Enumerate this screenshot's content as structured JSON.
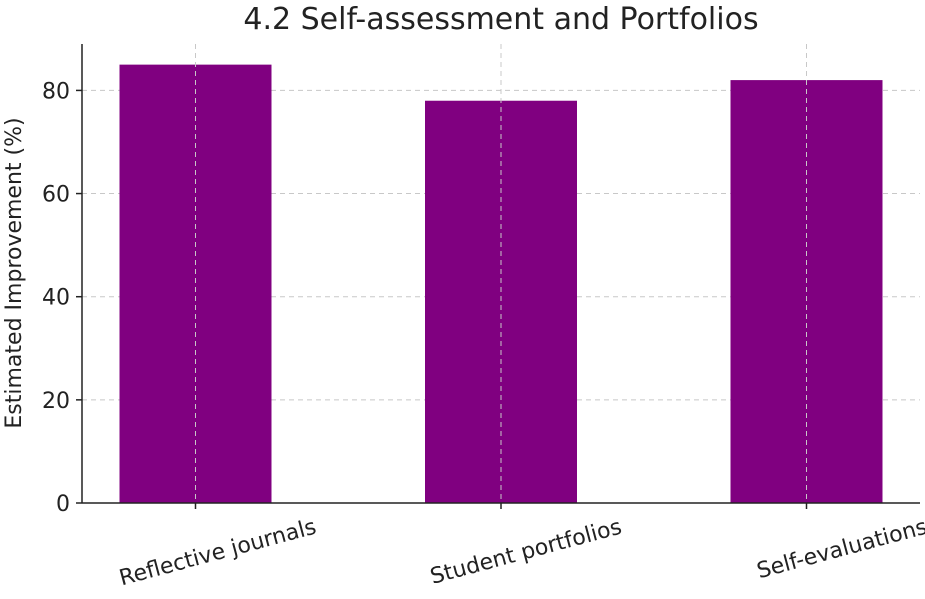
{
  "chart_data": {
    "type": "bar",
    "title": "4.2 Self-assessment and Portfolios",
    "xlabel": "",
    "ylabel": "Estimated Improvement (%)",
    "categories": [
      "Reflective journals",
      "Student portfolios",
      "Self-evaluations"
    ],
    "values": [
      85,
      78,
      82
    ],
    "ylim": [
      0,
      89
    ],
    "yticks": [
      0,
      20,
      40,
      60,
      80
    ],
    "grid": true,
    "bar_color": "#800080"
  }
}
